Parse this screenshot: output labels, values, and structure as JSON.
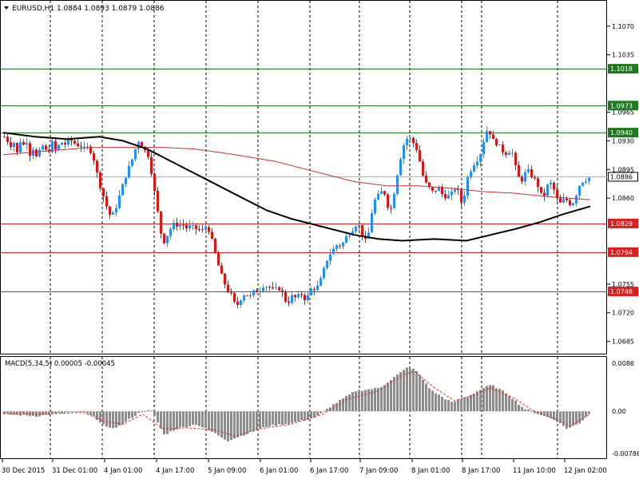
{
  "header": {
    "symbol_line": "EURUSD,H1  1.0884 1.0893 1.0879 1.0886"
  },
  "macd": {
    "label": "MACD(5,34,5) 0.00005 -0.00045",
    "axis_labels": [
      "0.0086",
      "0.00",
      "-0.00786"
    ]
  },
  "price_axis_labels": [
    "1.1070",
    "1.1035",
    "1.0965",
    "1.0930",
    "1.0895",
    "1.0860",
    "1.0755",
    "1.0720",
    "1.0685"
  ],
  "time_axis_labels": [
    "30 Dec 2015",
    "31 Dec 01:00",
    "4 Jan 01:00",
    "4 Jan 17:00",
    "5 Jan 09:00",
    "6 Jan 01:00",
    "6 Jan 17:00",
    "7 Jan 09:00",
    "8 Jan 01:00",
    "8 Jan 17:00",
    "11 Jan 10:00",
    "12 Jan 02:00"
  ],
  "levels": {
    "green": [
      "1.1018",
      "1.0973",
      "1.0940"
    ],
    "red": [
      "1.0829",
      "1.0794",
      "1.0746"
    ],
    "current": "1.0886"
  },
  "colors": {
    "bull": "#1e90ff",
    "bear": "#dc1414",
    "green_level": "#1e7a1e",
    "red_level": "#e02020",
    "ma_fast": "#000000",
    "ma_slow": "#d03030",
    "histogram": "#8c8c8c",
    "signal": "#e03030",
    "grid": "#000000"
  },
  "chart_data": {
    "type": "candlestick",
    "symbol": "EURUSD",
    "timeframe": "H1",
    "last_ohlc": {
      "open": 1.0884,
      "high": 1.0893,
      "low": 1.0879,
      "close": 1.0886
    },
    "price_range": [
      1.0671,
      1.11
    ],
    "close_path": [
      [
        0,
        1.0935
      ],
      [
        4,
        1.093
      ],
      [
        8,
        1.0925
      ],
      [
        12,
        1.0928
      ],
      [
        16,
        1.0915
      ],
      [
        20,
        1.093
      ],
      [
        24,
        1.0925
      ],
      [
        28,
        1.093
      ],
      [
        33,
        1.091
      ],
      [
        37,
        1.0925
      ],
      [
        41,
        1.0905
      ],
      [
        45,
        1.092
      ],
      [
        49,
        1.0925
      ],
      [
        53,
        1.0915
      ],
      [
        57,
        1.092
      ],
      [
        61,
        1.093
      ],
      [
        65,
        1.0915
      ],
      [
        70,
        1.093
      ],
      [
        75,
        1.0925
      ],
      [
        80,
        1.093
      ],
      [
        85,
        1.093
      ],
      [
        90,
        1.0925
      ],
      [
        95,
        1.0925
      ],
      [
        100,
        1.092
      ],
      [
        105,
        1.0922
      ],
      [
        110,
        1.0915
      ],
      [
        114,
        1.09
      ],
      [
        118,
        1.088
      ],
      [
        122,
        1.087
      ],
      [
        126,
        1.0855
      ],
      [
        130,
        1.0845
      ],
      [
        134,
        1.0835
      ],
      [
        138,
        1.0845
      ],
      [
        142,
        1.0855
      ],
      [
        146,
        1.087
      ],
      [
        150,
        1.088
      ],
      [
        154,
        1.0895
      ],
      [
        158,
        1.09
      ],
      [
        162,
        1.0915
      ],
      [
        166,
        1.0925
      ],
      [
        170,
        1.0935
      ],
      [
        174,
        1.0915
      ],
      [
        178,
        1.092
      ],
      [
        182,
        1.0905
      ],
      [
        186,
        1.088
      ],
      [
        190,
        1.0855
      ],
      [
        194,
        1.083
      ],
      [
        198,
        1.0805
      ],
      [
        202,
        1.081
      ],
      [
        206,
        1.082
      ],
      [
        210,
        1.0825
      ],
      [
        214,
        1.083
      ],
      [
        218,
        1.0825
      ],
      [
        222,
        1.083
      ],
      [
        226,
        1.0825
      ],
      [
        230,
        1.0822
      ],
      [
        234,
        1.0828
      ],
      [
        238,
        1.082
      ],
      [
        242,
        1.0825
      ],
      [
        246,
        1.0818
      ],
      [
        250,
        1.0822
      ],
      [
        254,
        1.0828
      ],
      [
        258,
        1.0815
      ],
      [
        262,
        1.08
      ],
      [
        266,
        1.0785
      ],
      [
        270,
        1.077
      ],
      [
        274,
        1.076
      ],
      [
        278,
        1.075
      ],
      [
        282,
        1.0745
      ],
      [
        286,
        1.0738
      ],
      [
        290,
        1.0725
      ],
      [
        294,
        1.0735
      ],
      [
        298,
        1.074
      ],
      [
        302,
        1.0745
      ],
      [
        306,
        1.0738
      ],
      [
        310,
        1.0742
      ],
      [
        314,
        1.0748
      ],
      [
        318,
        1.0745
      ],
      [
        322,
        1.0752
      ],
      [
        326,
        1.0755
      ],
      [
        330,
        1.075
      ],
      [
        334,
        1.0752
      ],
      [
        338,
        1.0745
      ],
      [
        342,
        1.0752
      ],
      [
        346,
        1.0748
      ],
      [
        350,
        1.074
      ],
      [
        354,
        1.073
      ],
      [
        358,
        1.0738
      ],
      [
        362,
        1.0742
      ],
      [
        366,
        1.0735
      ],
      [
        370,
        1.0745
      ],
      [
        374,
        1.074
      ],
      [
        378,
        1.0735
      ],
      [
        382,
        1.0745
      ],
      [
        386,
        1.0752
      ],
      [
        390,
        1.0748
      ],
      [
        394,
        1.0755
      ],
      [
        398,
        1.0765
      ],
      [
        402,
        1.078
      ],
      [
        406,
        1.079
      ],
      [
        410,
        1.0795
      ],
      [
        414,
        1.08
      ],
      [
        418,
        1.0805
      ],
      [
        422,
        1.08
      ],
      [
        426,
        1.081
      ],
      [
        430,
        1.0815
      ],
      [
        434,
        1.082
      ],
      [
        438,
        1.0825
      ],
      [
        442,
        1.083
      ],
      [
        446,
        1.0822
      ],
      [
        450,
        1.081
      ],
      [
        454,
        1.0805
      ],
      [
        458,
        1.083
      ],
      [
        462,
        1.0855
      ],
      [
        466,
        1.086
      ],
      [
        470,
        1.0865
      ],
      [
        474,
        1.087
      ],
      [
        478,
        1.0862
      ],
      [
        482,
        1.084
      ],
      [
        486,
        1.0855
      ],
      [
        490,
        1.088
      ],
      [
        494,
        1.09
      ],
      [
        498,
        1.092
      ],
      [
        502,
        1.093
      ],
      [
        506,
        1.0935
      ],
      [
        510,
        1.093
      ],
      [
        514,
        1.0925
      ],
      [
        518,
        1.0915
      ],
      [
        522,
        1.0895
      ],
      [
        526,
        1.088
      ],
      [
        530,
        1.0875
      ],
      [
        534,
        1.087
      ],
      [
        538,
        1.0865
      ],
      [
        542,
        1.0875
      ],
      [
        546,
        1.087
      ],
      [
        550,
        1.086
      ],
      [
        554,
        1.0865
      ],
      [
        558,
        1.086
      ],
      [
        562,
        1.087
      ],
      [
        566,
        1.0875
      ],
      [
        570,
        1.086
      ],
      [
        574,
        1.085
      ],
      [
        578,
        1.088
      ],
      [
        582,
        1.089
      ],
      [
        586,
        1.09
      ],
      [
        590,
        1.0905
      ],
      [
        594,
        1.091
      ],
      [
        598,
        1.092
      ],
      [
        602,
        1.094
      ],
      [
        606,
        1.0945
      ],
      [
        610,
        1.0935
      ],
      [
        614,
        1.0925
      ],
      [
        618,
        1.093
      ],
      [
        622,
        1.0915
      ],
      [
        626,
        1.092
      ],
      [
        630,
        1.091
      ],
      [
        634,
        1.0925
      ],
      [
        638,
        1.0905
      ],
      [
        642,
        1.089
      ],
      [
        646,
        1.088
      ],
      [
        650,
        1.0885
      ],
      [
        654,
        1.0895
      ],
      [
        658,
        1.089
      ],
      [
        662,
        1.0885
      ],
      [
        666,
        1.088
      ],
      [
        670,
        1.087
      ],
      [
        674,
        1.0858
      ],
      [
        678,
        1.087
      ],
      [
        682,
        1.088
      ],
      [
        686,
        1.0875
      ],
      [
        690,
        1.0865
      ],
      [
        694,
        1.0852
      ],
      [
        698,
        1.0855
      ],
      [
        702,
        1.086
      ],
      [
        706,
        1.0855
      ],
      [
        710,
        1.0852
      ],
      [
        714,
        1.0858
      ],
      [
        718,
        1.0872
      ],
      [
        722,
        1.088
      ],
      [
        726,
        1.0882
      ],
      [
        730,
        1.0884
      ],
      [
        734,
        1.0886
      ]
    ],
    "ma_fast": [
      [
        0,
        1.094
      ],
      [
        40,
        1.0935
      ],
      [
        80,
        1.0932
      ],
      [
        120,
        1.0935
      ],
      [
        150,
        1.093
      ],
      [
        180,
        1.092
      ],
      [
        210,
        1.0905
      ],
      [
        240,
        1.089
      ],
      [
        270,
        1.0875
      ],
      [
        300,
        1.086
      ],
      [
        330,
        1.0845
      ],
      [
        360,
        1.0835
      ],
      [
        400,
        1.0825
      ],
      [
        440,
        1.0815
      ],
      [
        470,
        1.081
      ],
      [
        500,
        1.0808
      ],
      [
        540,
        1.081
      ],
      [
        580,
        1.0808
      ],
      [
        610,
        1.0815
      ],
      [
        640,
        1.0822
      ],
      [
        670,
        1.083
      ],
      [
        700,
        1.084
      ],
      [
        735,
        1.085
      ]
    ],
    "ma_slow": [
      [
        0,
        1.0913
      ],
      [
        60,
        1.0918
      ],
      [
        110,
        1.0922
      ],
      [
        160,
        1.0922
      ],
      [
        200,
        1.0922
      ],
      [
        240,
        1.092
      ],
      [
        290,
        1.0913
      ],
      [
        340,
        1.0905
      ],
      [
        400,
        1.089
      ],
      [
        440,
        1.088
      ],
      [
        480,
        1.0875
      ],
      [
        520,
        1.0875
      ],
      [
        560,
        1.0872
      ],
      [
        600,
        1.0868
      ],
      [
        640,
        1.0866
      ],
      [
        680,
        1.0862
      ],
      [
        710,
        1.086
      ],
      [
        735,
        1.0858
      ]
    ],
    "horizontal_levels": [
      {
        "value": 1.1018,
        "color": "green"
      },
      {
        "value": 1.0973,
        "color": "green"
      },
      {
        "value": 1.094,
        "color": "green"
      },
      {
        "value": 1.0829,
        "color": "red"
      },
      {
        "value": 1.0794,
        "color": "red"
      },
      {
        "value": 1.0746,
        "color": "red"
      }
    ],
    "macd_range": [
      -0.00786,
      0.0086
    ],
    "macd_profile": [
      [
        0,
        -0.0005
      ],
      [
        40,
        -0.0008
      ],
      [
        80,
        -0.0002
      ],
      [
        100,
        -0.0001
      ],
      [
        115,
        -0.0012
      ],
      [
        130,
        -0.003
      ],
      [
        145,
        -0.0025
      ],
      [
        160,
        -0.001
      ],
      [
        175,
        0.0002
      ],
      [
        185,
        0.0
      ],
      [
        200,
        -0.004
      ],
      [
        215,
        -0.003
      ],
      [
        240,
        -0.0022
      ],
      [
        260,
        -0.0035
      ],
      [
        280,
        -0.005
      ],
      [
        300,
        -0.004
      ],
      [
        330,
        -0.0025
      ],
      [
        360,
        -0.002
      ],
      [
        390,
        -0.001
      ],
      [
        410,
        0.001
      ],
      [
        440,
        0.0035
      ],
      [
        470,
        0.004
      ],
      [
        490,
        0.006
      ],
      [
        505,
        0.0075
      ],
      [
        515,
        0.007
      ],
      [
        535,
        0.0035
      ],
      [
        560,
        0.0015
      ],
      [
        580,
        0.0025
      ],
      [
        600,
        0.004
      ],
      [
        610,
        0.0045
      ],
      [
        630,
        0.003
      ],
      [
        650,
        0.0005
      ],
      [
        670,
        -0.0005
      ],
      [
        690,
        -0.0015
      ],
      [
        705,
        -0.003
      ],
      [
        720,
        -0.002
      ],
      [
        735,
        0.0
      ]
    ],
    "macd_signal": [
      [
        0,
        -0.0004
      ],
      [
        60,
        -0.0004
      ],
      [
        100,
        -0.0002
      ],
      [
        130,
        -0.0018
      ],
      [
        150,
        -0.0022
      ],
      [
        175,
        -0.0005
      ],
      [
        200,
        -0.003
      ],
      [
        230,
        -0.0028
      ],
      [
        265,
        -0.0032
      ],
      [
        290,
        -0.0042
      ],
      [
        320,
        -0.003
      ],
      [
        360,
        -0.0022
      ],
      [
        400,
        -0.0005
      ],
      [
        430,
        0.002
      ],
      [
        470,
        0.0035
      ],
      [
        500,
        0.0062
      ],
      [
        515,
        0.0068
      ],
      [
        540,
        0.004
      ],
      [
        565,
        0.0018
      ],
      [
        590,
        0.0028
      ],
      [
        610,
        0.004
      ],
      [
        640,
        0.0022
      ],
      [
        665,
        0.0
      ],
      [
        690,
        -0.0012
      ],
      [
        710,
        -0.0025
      ],
      [
        735,
        -0.0004
      ]
    ]
  }
}
